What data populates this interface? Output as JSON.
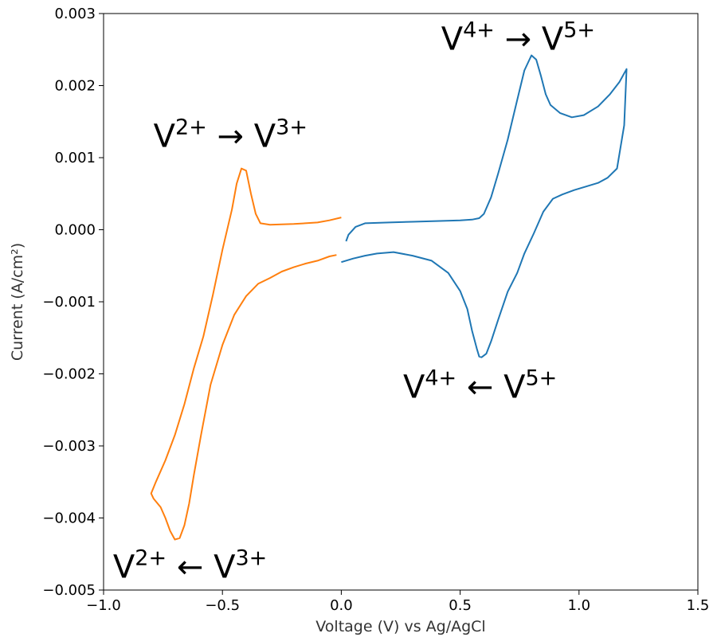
{
  "chart_data": {
    "type": "line",
    "xlabel": "Voltage (V) vs Ag/AgCl",
    "ylabel": "Current (A/cm²)",
    "xlim": [
      -1.0,
      1.5
    ],
    "ylim": [
      -0.005,
      0.003
    ],
    "x_ticks": [
      -1.0,
      -0.5,
      0.0,
      0.5,
      1.0,
      1.5
    ],
    "x_tick_labels": [
      "−1.0",
      "−0.5",
      "0.0",
      "0.5",
      "1.0",
      "1.5"
    ],
    "y_ticks": [
      -0.005,
      -0.004,
      -0.003,
      -0.002,
      -0.001,
      0.0,
      0.001,
      0.002,
      0.003
    ],
    "y_tick_labels": [
      "−0.005",
      "−0.004",
      "−0.003",
      "−0.002",
      "−0.001",
      "0.000",
      "0.001",
      "0.002",
      "0.003"
    ],
    "grid": false,
    "series": [
      {
        "color": "#1f77b4",
        "x": [
          0.02,
          0.03,
          0.06,
          0.1,
          0.2,
          0.3,
          0.4,
          0.5,
          0.55,
          0.58,
          0.6,
          0.63,
          0.66,
          0.7,
          0.74,
          0.77,
          0.8,
          0.82,
          0.84,
          0.86,
          0.88,
          0.92,
          0.97,
          1.02,
          1.08,
          1.13,
          1.17,
          1.2,
          1.19,
          1.16,
          1.12,
          1.08,
          1.03,
          0.98,
          0.93,
          0.89,
          0.85,
          0.81,
          0.77,
          0.74,
          0.7,
          0.66,
          0.63,
          0.61,
          0.59,
          0.58,
          0.57,
          0.55,
          0.53,
          0.5,
          0.45,
          0.38,
          0.3,
          0.22,
          0.15,
          0.1,
          0.05,
          0.0
        ],
        "y": [
          -0.00016,
          -7e-05,
          4e-05,
          9e-05,
          0.0001,
          0.00011,
          0.00012,
          0.00013,
          0.00014,
          0.00016,
          0.00022,
          0.00045,
          0.00078,
          0.00125,
          0.0018,
          0.00221,
          0.00242,
          0.00236,
          0.00213,
          0.00188,
          0.00173,
          0.00162,
          0.00156,
          0.00159,
          0.00171,
          0.00188,
          0.00205,
          0.00223,
          0.00145,
          0.00085,
          0.00072,
          0.00065,
          0.0006,
          0.00055,
          0.00049,
          0.00043,
          0.00025,
          -5e-05,
          -0.00033,
          -0.0006,
          -0.00086,
          -0.00125,
          -0.00155,
          -0.00172,
          -0.00177,
          -0.00176,
          -0.00165,
          -0.0014,
          -0.0011,
          -0.00085,
          -0.0006,
          -0.00043,
          -0.00036,
          -0.00031,
          -0.00033,
          -0.00036,
          -0.0004,
          -0.00045
        ]
      },
      {
        "color": "#ff7f0e",
        "x": [
          0.0,
          -0.05,
          -0.1,
          -0.2,
          -0.3,
          -0.34,
          -0.36,
          -0.38,
          -0.4,
          -0.42,
          -0.44,
          -0.46,
          -0.5,
          -0.54,
          -0.58,
          -0.62,
          -0.66,
          -0.7,
          -0.74,
          -0.78,
          -0.8,
          -0.79,
          -0.76,
          -0.74,
          -0.72,
          -0.7,
          -0.68,
          -0.66,
          -0.64,
          -0.62,
          -0.59,
          -0.55,
          -0.5,
          -0.45,
          -0.4,
          -0.35,
          -0.3,
          -0.25,
          -0.2,
          -0.15,
          -0.1,
          -0.05,
          -0.02
        ],
        "y": [
          0.00017,
          0.00013,
          0.0001,
          8e-05,
          7e-05,
          9e-05,
          0.00022,
          0.0005,
          0.00082,
          0.00085,
          0.00064,
          0.00028,
          -0.00028,
          -0.0009,
          -0.00148,
          -0.00192,
          -0.00242,
          -0.00285,
          -0.0032,
          -0.0035,
          -0.00366,
          -0.00373,
          -0.00385,
          -0.004,
          -0.00418,
          -0.0043,
          -0.00428,
          -0.0041,
          -0.0038,
          -0.0034,
          -0.00285,
          -0.00215,
          -0.0016,
          -0.00118,
          -0.00092,
          -0.00075,
          -0.00067,
          -0.00058,
          -0.00052,
          -0.00047,
          -0.00043,
          -0.00037,
          -0.00035
        ]
      }
    ],
    "annotations": [
      {
        "base": "V",
        "sup1": "4+",
        "arrow": "→",
        "base2": "V",
        "sup2": "5+",
        "x": 0.42,
        "y": 0.0025
      },
      {
        "base": "V",
        "sup1": "2+",
        "arrow": "→",
        "base2": "V",
        "sup2": "3+",
        "x": -0.79,
        "y": 0.00115
      },
      {
        "base": "V",
        "sup1": "4+",
        "arrow": "←",
        "base2": "V",
        "sup2": "5+",
        "x": 0.26,
        "y": -0.00233
      },
      {
        "base": "V",
        "sup1": "2+",
        "arrow": "←",
        "base2": "V",
        "sup2": "3+",
        "x": -0.96,
        "y": -0.00483
      }
    ]
  }
}
